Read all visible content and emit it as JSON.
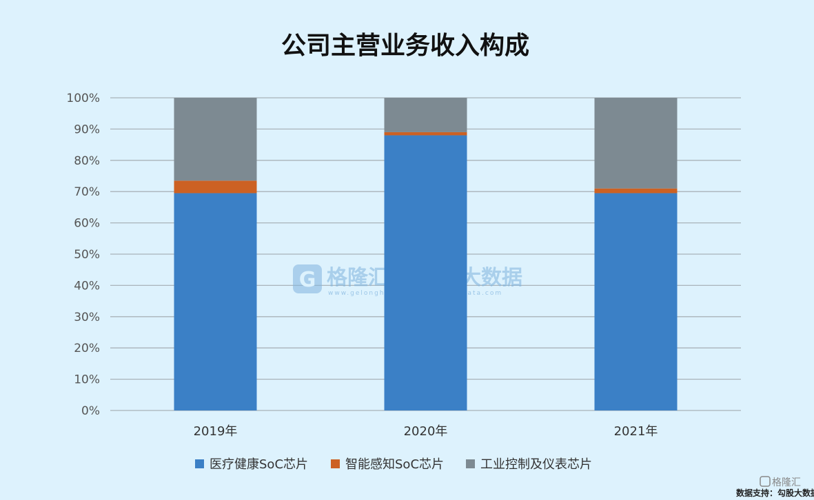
{
  "chart_data": {
    "type": "bar",
    "stacked": true,
    "title": "公司主营业务收入构成",
    "categories": [
      "2019年",
      "2020年",
      "2021年"
    ],
    "series": [
      {
        "name": "医疗健康SoC芯片",
        "color": "#3b80c6",
        "values": [
          69.5,
          88,
          69.5
        ]
      },
      {
        "name": "智能感知SoC芯片",
        "color": "#cc6123",
        "values": [
          4,
          1,
          1.5
        ]
      },
      {
        "name": "工业控制及仪表芯片",
        "color": "#7d8a92",
        "values": [
          26.5,
          11,
          29
        ]
      }
    ],
    "ylim": [
      0,
      100
    ],
    "yticks": [
      "0%",
      "10%",
      "20%",
      "30%",
      "40%",
      "50%",
      "60%",
      "70%",
      "80%",
      "90%",
      "100%"
    ],
    "grid": true,
    "legend": "bottom"
  },
  "watermark": {
    "brand1": "格隆汇",
    "brand1_url": "www.gelonghui.com",
    "brand2": "勾股大数据",
    "brand2_url": "www.gogudata.com"
  },
  "footer": {
    "credit": "数据支持：勾股大数据",
    "logo": "格隆汇"
  }
}
